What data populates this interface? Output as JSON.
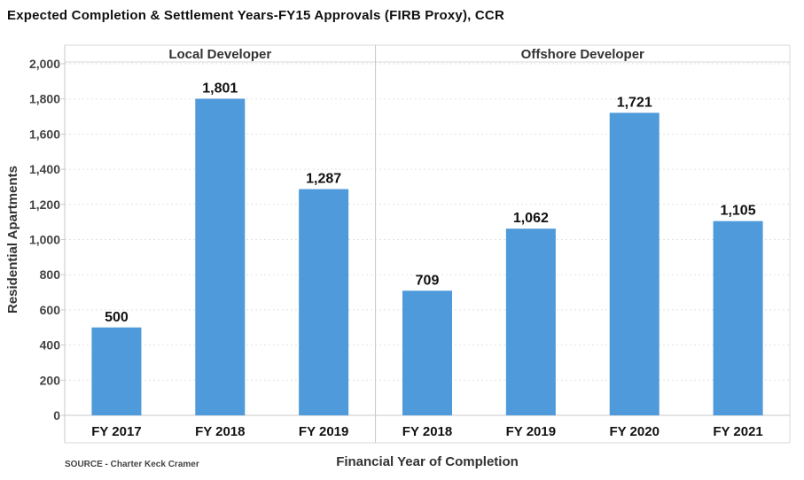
{
  "title": "Expected Completion & Settlement Years-FY15 Approvals (FIRB Proxy), CCR",
  "source": "SOURCE - Charter Keck Cramer",
  "chart_data": {
    "type": "bar",
    "title": "Expected Completion & Settlement Years-FY15 Approvals (FIRB Proxy), CCR",
    "xlabel": "Financial Year of Completion",
    "ylabel": "Residential Apartments",
    "ylim": [
      0,
      2000
    ],
    "yticks": [
      0,
      200,
      400,
      600,
      800,
      1000,
      1200,
      1400,
      1600,
      1800,
      2000
    ],
    "ytick_labels": [
      "0",
      "200",
      "400",
      "600",
      "800",
      "1,000",
      "1,200",
      "1,400",
      "1,600",
      "1,800",
      "2,000"
    ],
    "grid": true,
    "bar_color": "#4e9ada",
    "panels": [
      {
        "name": "Local Developer",
        "categories": [
          "FY 2017",
          "FY 2018",
          "FY 2019"
        ],
        "values": [
          500,
          1801,
          1287
        ],
        "labels": [
          "500",
          "1,801",
          "1,287"
        ]
      },
      {
        "name": "Offshore Developer",
        "categories": [
          "FY 2018",
          "FY 2019",
          "FY 2020",
          "FY 2021"
        ],
        "values": [
          709,
          1062,
          1721,
          1105
        ],
        "labels": [
          "709",
          "1,062",
          "1,721",
          "1,105"
        ]
      }
    ]
  }
}
